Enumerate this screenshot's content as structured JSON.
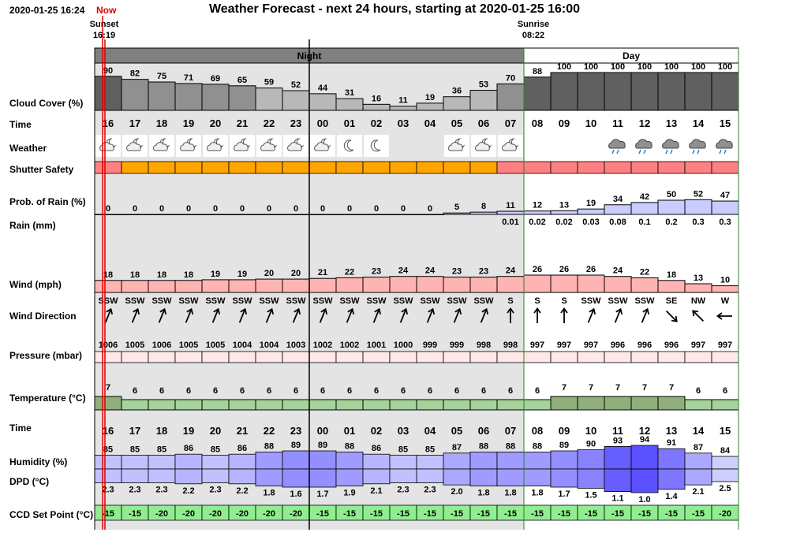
{
  "header": {
    "timestamp": "2020-01-25 16:24",
    "now_label": "Now",
    "title": "Weather Forecast - next 24 hours, starting at 2020-01-25 16:00"
  },
  "sun": {
    "sunset_label": "Sunset",
    "sunset_time": "16:19",
    "sunrise_label": "Sunrise",
    "sunrise_time": "08:22"
  },
  "bands": {
    "night_label": "Night",
    "day_label": "Day"
  },
  "labels": {
    "cloud": "Cloud Cover (%)",
    "time": "Time",
    "weather": "Weather",
    "shutter": "Shutter Safety",
    "prob_rain": "Prob. of Rain (%)",
    "rain": "Rain (mm)",
    "wind": "Wind (mph)",
    "wind_dir": "Wind Direction",
    "pressure": "Pressure (mbar)",
    "temperature": "Temperature (°C)",
    "time2": "Time",
    "humidity": "Humidity (%)",
    "dpd": "DPD (°C)",
    "ccd": "CCD Set Point (°C)"
  },
  "hours": [
    "16",
    "17",
    "18",
    "19",
    "20",
    "21",
    "22",
    "23",
    "00",
    "01",
    "02",
    "03",
    "04",
    "05",
    "06",
    "07",
    "08",
    "09",
    "10",
    "11",
    "12",
    "13",
    "14",
    "15"
  ],
  "cloud": [
    90,
    82,
    75,
    71,
    69,
    65,
    59,
    52,
    44,
    31,
    16,
    11,
    19,
    36,
    53,
    70,
    88,
    100,
    100,
    100,
    100,
    100,
    100,
    100
  ],
  "weather_icons": [
    "cloud-moon-icon",
    "cloud-moon-icon",
    "cloud-moon-icon",
    "cloud-moon-icon",
    "cloud-moon-icon",
    "cloud-moon-icon",
    "cloud-moon-icon",
    "cloud-moon-icon",
    "cloud-moon-icon",
    "moon-icon",
    "moon-icon",
    "none",
    "none",
    "cloud-moon-icon",
    "cloud-moon-icon",
    "cloud-moon-icon",
    "none",
    "none",
    "none",
    "rain-cloud-icon",
    "rain-cloud-icon",
    "rain-cloud-icon",
    "rain-cloud-icon",
    "rain-cloud-icon"
  ],
  "shutter_status": [
    "unsafe",
    "caution",
    "caution",
    "caution",
    "caution",
    "caution",
    "caution",
    "caution",
    "caution",
    "caution",
    "caution",
    "caution",
    "caution",
    "caution",
    "caution",
    "unsafe",
    "unsafe",
    "unsafe",
    "unsafe",
    "unsafe",
    "unsafe",
    "unsafe",
    "unsafe",
    "unsafe"
  ],
  "prob_rain": [
    0,
    0,
    0,
    0,
    0,
    0,
    0,
    0,
    0,
    0,
    0,
    0,
    0,
    5,
    8,
    11,
    12,
    13,
    19,
    34,
    42,
    50,
    52,
    47
  ],
  "rain_labels": [
    "",
    "",
    "",
    "",
    "",
    "",
    "",
    "",
    "",
    "",
    "",
    "",
    "",
    "",
    "",
    "0.01",
    "0.02",
    "0.02",
    "0.03",
    "0.08",
    "0.1",
    "0.2",
    "0.3",
    "0.3"
  ],
  "wind": [
    18,
    18,
    18,
    18,
    19,
    19,
    20,
    20,
    21,
    22,
    23,
    24,
    24,
    23,
    23,
    24,
    26,
    26,
    26,
    24,
    22,
    18,
    13,
    10
  ],
  "wind_dir": [
    "SSW",
    "SSW",
    "SSW",
    "SSW",
    "SSW",
    "SSW",
    "SSW",
    "SSW",
    "SSW",
    "SSW",
    "SSW",
    "SSW",
    "SSW",
    "SSW",
    "SSW",
    "S",
    "S",
    "S",
    "SSW",
    "SSW",
    "SSW",
    "SE",
    "NW",
    "W"
  ],
  "wind_bearing": [
    22,
    22,
    22,
    22,
    22,
    22,
    22,
    22,
    22,
    22,
    22,
    22,
    22,
    22,
    22,
    0,
    0,
    0,
    22,
    22,
    22,
    135,
    315,
    270
  ],
  "pressure": [
    1006,
    1005,
    1006,
    1005,
    1005,
    1004,
    1004,
    1003,
    1002,
    1002,
    1001,
    1000,
    999,
    999,
    998,
    998,
    997,
    997,
    997,
    996,
    996,
    996,
    997,
    997
  ],
  "temperature": [
    7,
    6,
    6,
    6,
    6,
    6,
    6,
    6,
    6,
    6,
    6,
    6,
    6,
    6,
    6,
    6,
    6,
    7,
    7,
    7,
    7,
    7,
    6,
    6
  ],
  "humidity": [
    85,
    85,
    85,
    86,
    85,
    86,
    88,
    89,
    89,
    88,
    86,
    85,
    85,
    87,
    88,
    88,
    88,
    89,
    90,
    93,
    94,
    91,
    87,
    84
  ],
  "dpd": [
    "2.3",
    "2.3",
    "2.3",
    "2.2",
    "2.3",
    "2.2",
    "1.8",
    "1.6",
    "1.7",
    "1.9",
    "2.1",
    "2.3",
    "2.3",
    "2.0",
    "1.8",
    "1.8",
    "1.8",
    "1.7",
    "1.5",
    "1.1",
    "1.0",
    "1.4",
    "2.1",
    "2.5"
  ],
  "ccd": [
    -15,
    -15,
    -20,
    -20,
    -20,
    -20,
    -20,
    -20,
    -15,
    -15,
    -15,
    -15,
    -15,
    -15,
    -15,
    -15,
    -15,
    -15,
    -15,
    -15,
    -15,
    -15,
    -15,
    -20
  ],
  "colors": {
    "night_band": "#808080",
    "night_bg": "#e4e4e4",
    "now_line": "#e00000",
    "shutter_caution": "#ffa500",
    "shutter_unsafe": "#ff8080",
    "ccd_fill": "#90ee90",
    "wind_fill": "#ffb4b4",
    "pressure_fill": "#ffe8e8",
    "temp_fill": "#8fb07a"
  }
}
